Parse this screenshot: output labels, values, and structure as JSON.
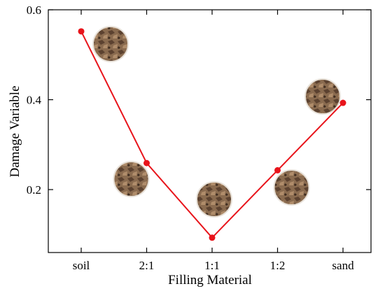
{
  "chart_data": {
    "type": "line",
    "xlabel": "Filling Material",
    "ylabel": "Damage Variable",
    "categories": [
      "soil",
      "2:1",
      "1:1",
      "1:2",
      "sand"
    ],
    "series": [
      {
        "values": [
          0.552,
          0.259,
          0.093,
          0.243,
          0.393
        ]
      }
    ],
    "ylim": [
      0.06,
      0.6
    ],
    "yticks": [
      0.2,
      0.4,
      0.6
    ],
    "ytick_labels": [
      "0.2",
      "0.4",
      "0.6"
    ],
    "grid": false,
    "line_color": "#e8141b",
    "marker_color": "#e8141b",
    "sample_photos": [
      "soil",
      "2:1",
      "1:1",
      "1:2",
      "sand"
    ]
  }
}
